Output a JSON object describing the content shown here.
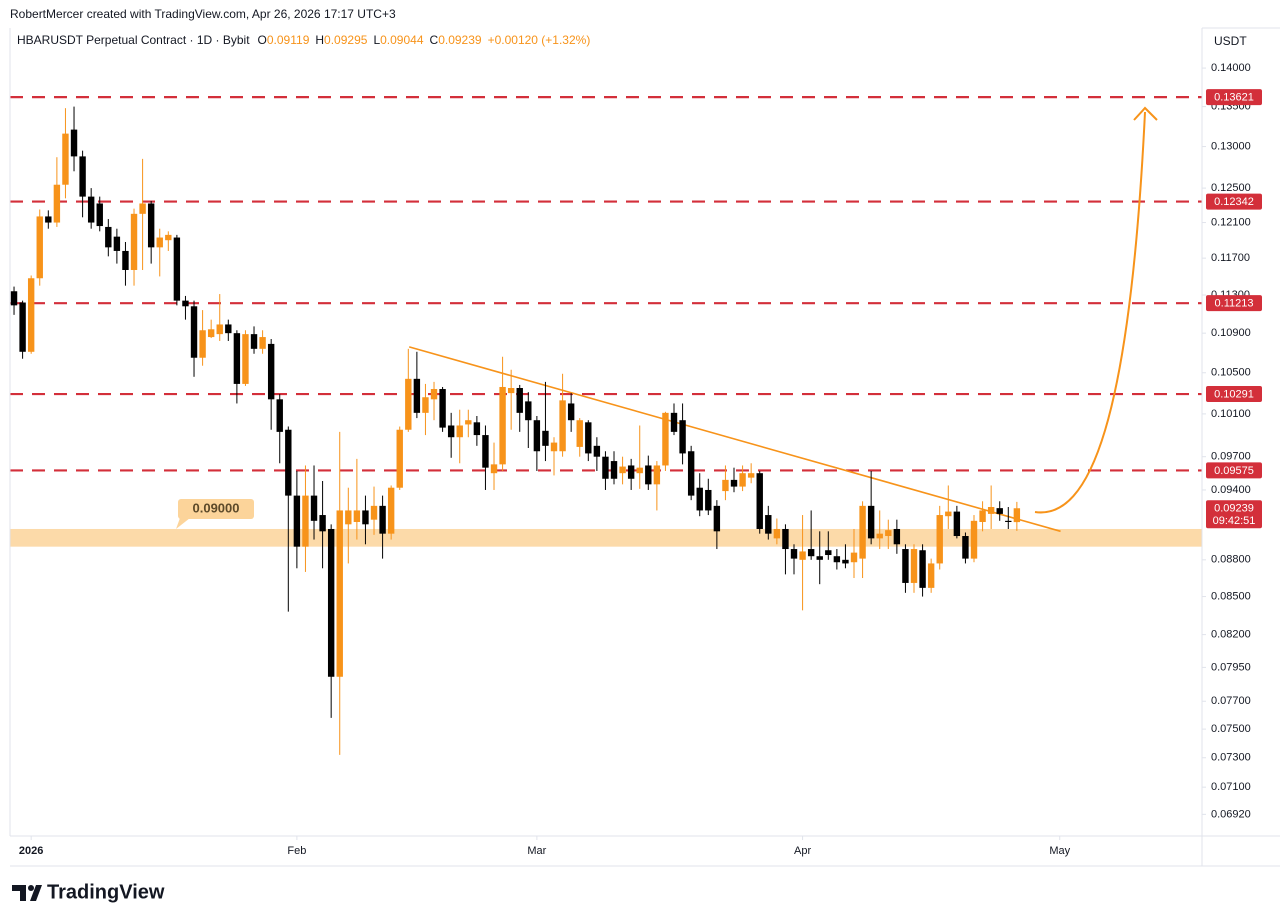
{
  "chart_data": {
    "type": "candlestick",
    "credit": "RobertMercer created with TradingView.com, Apr 26, 2026 17:17 UTC+3",
    "title": "HBARUSDT Perpetual Contract · 1D · Bybit",
    "ohlc_labels": [
      "O",
      "H",
      "L",
      "C"
    ],
    "change": "+0.00120 (+1.32%)",
    "axis_unit": "USDT",
    "countdown": "09:42:51",
    "footer": "TradingView",
    "up_color": "#f7931a",
    "down_color": "#000000",
    "level_color": "#d32f3a",
    "zone_color": "#fcd49a",
    "trend_color": "#f7931a",
    "log_scale": true,
    "grid": false,
    "xlim": [
      -0.47,
      138.6
    ],
    "xticks": [
      {
        "value": 2,
        "label": "2026"
      },
      {
        "value": 33,
        "label": "Feb"
      },
      {
        "value": 61,
        "label": "Mar"
      },
      {
        "value": 92,
        "label": "Apr"
      },
      {
        "value": 122,
        "label": "May"
      }
    ],
    "ylim": [
      0.0678,
      0.1454
    ],
    "yticks": [
      {
        "value": 0.14,
        "label": "0.14000"
      },
      {
        "value": 0.135,
        "label": "0.13500"
      },
      {
        "value": 0.13,
        "label": "0.13000"
      },
      {
        "value": 0.125,
        "label": "0.12500"
      },
      {
        "value": 0.121,
        "label": "0.12100"
      },
      {
        "value": 0.117,
        "label": "0.11700"
      },
      {
        "value": 0.113,
        "label": "0.11300"
      },
      {
        "value": 0.109,
        "label": "0.10900"
      },
      {
        "value": 0.105,
        "label": "0.10500"
      },
      {
        "value": 0.101,
        "label": "0.10100"
      },
      {
        "value": 0.097,
        "label": "0.09700"
      },
      {
        "value": 0.094,
        "label": "0.09400"
      },
      {
        "value": 0.088,
        "label": "0.08800"
      },
      {
        "value": 0.085,
        "label": "0.08500"
      },
      {
        "value": 0.082,
        "label": "0.08200"
      },
      {
        "value": 0.0795,
        "label": "0.07950"
      },
      {
        "value": 0.077,
        "label": "0.07700"
      },
      {
        "value": 0.075,
        "label": "0.07500"
      },
      {
        "value": 0.073,
        "label": "0.07300"
      },
      {
        "value": 0.071,
        "label": "0.07100"
      },
      {
        "value": 0.0692,
        "label": "0.06920"
      }
    ],
    "levels": [
      0.13621,
      0.12342,
      0.11213,
      0.10291,
      0.09575
    ],
    "zone": {
      "low": 0.0891,
      "high": 0.0906,
      "label": {
        "value": 0.09,
        "label": "0.09000"
      }
    },
    "trendline": {
      "x": [
        46.1,
        122.1
      ],
      "y": [
        0.1076,
        0.0904
      ]
    },
    "open": [
      0.1134,
      0.1122,
      0.1071,
      0.1148,
      0.1217,
      0.121,
      0.1254,
      0.1321,
      0.1288,
      0.124,
      0.1232,
      0.1205,
      0.1194,
      0.1178,
      0.1157,
      0.122,
      0.1232,
      0.1182,
      0.119,
      0.1193,
      0.1124,
      0.1118,
      0.1065,
      0.1086,
      0.1089,
      0.1099,
      0.109,
      0.1039,
      0.1089,
      0.1074,
      0.1079,
      0.1024,
      0.0995,
      0.0935,
      0.0891,
      0.0935,
      0.0918,
      0.0906,
      0.0788,
      0.091,
      0.0912,
      0.0922,
      0.0914,
      0.0926,
      0.0902,
      0.0942,
      0.0995,
      0.1044,
      0.1011,
      0.1024,
      0.1034,
      0.0999,
      0.0988,
      0.1,
      0.1002,
      0.099,
      0.0955,
      0.0963,
      0.103,
      0.1035,
      0.1022,
      0.1004,
      0.0994,
      0.0975,
      0.0975,
      0.102,
      0.0979,
      0.1002,
      0.098,
      0.097,
      0.0966,
      0.0955,
      0.0962,
      0.0955,
      0.0962,
      0.0945,
      0.0962,
      0.1011,
      0.1004,
      0.0975,
      0.0942,
      0.094,
      0.0926,
      0.0939,
      0.0949,
      0.0943,
      0.0951,
      0.0955,
      0.0918,
      0.0898,
      0.0906,
      0.0889,
      0.088,
      0.0889,
      0.0883,
      0.0888,
      0.0883,
      0.088,
      0.0878,
      0.0881,
      0.0926,
      0.0898,
      0.09,
      0.0906,
      0.0889,
      0.0861,
      0.0888,
      0.0857,
      0.0877,
      0.0917,
      0.0921,
      0.09,
      0.0881,
      0.0912,
      0.0919,
      0.0924,
      0.0913,
      0.09119
    ],
    "high": [
      0.1139,
      0.1124,
      0.1151,
      0.1225,
      0.1224,
      0.1287,
      0.1348,
      0.135,
      0.1295,
      0.125,
      0.124,
      0.1214,
      0.1203,
      0.1188,
      0.1226,
      0.1285,
      0.1235,
      0.1203,
      0.12,
      0.1196,
      0.1129,
      0.1124,
      0.1114,
      0.1104,
      0.1131,
      0.1104,
      0.1093,
      0.1093,
      0.1097,
      0.1093,
      0.1084,
      0.1029,
      0.0998,
      0.0957,
      0.0962,
      0.0962,
      0.0948,
      0.091,
      0.0993,
      0.0942,
      0.0968,
      0.0935,
      0.0943,
      0.0935,
      0.0944,
      0.0998,
      0.1074,
      0.1071,
      0.1039,
      0.1041,
      0.1036,
      0.1011,
      0.1014,
      0.1014,
      0.1008,
      0.0999,
      0.0983,
      0.1066,
      0.1053,
      0.1038,
      0.1031,
      0.1008,
      0.1041,
      0.0988,
      0.1049,
      0.103,
      0.1006,
      0.1004,
      0.0988,
      0.0975,
      0.0975,
      0.097,
      0.0968,
      0.0999,
      0.0971,
      0.0966,
      0.1012,
      0.102,
      0.102,
      0.098,
      0.0955,
      0.095,
      0.0931,
      0.0962,
      0.096,
      0.0962,
      0.0964,
      0.0957,
      0.0926,
      0.0915,
      0.091,
      0.0893,
      0.0918,
      0.0922,
      0.0904,
      0.0904,
      0.0889,
      0.0893,
      0.0906,
      0.093,
      0.0957,
      0.0922,
      0.0914,
      0.0914,
      0.0893,
      0.0893,
      0.0893,
      0.0881,
      0.0926,
      0.0944,
      0.0926,
      0.0903,
      0.0918,
      0.093,
      0.0944,
      0.093,
      0.0925,
      0.09295
    ],
    "low": [
      0.1109,
      0.1064,
      0.1069,
      0.114,
      0.1203,
      0.1205,
      0.1238,
      0.127,
      0.1216,
      0.1203,
      0.12,
      0.1172,
      0.1164,
      0.114,
      0.114,
      0.1157,
      0.1164,
      0.115,
      0.1178,
      0.1119,
      0.1104,
      0.1046,
      0.1057,
      0.1085,
      0.1082,
      0.1082,
      0.102,
      0.1037,
      0.1069,
      0.1069,
      0.0995,
      0.0964,
      0.0838,
      0.0873,
      0.087,
      0.0897,
      0.0873,
      0.0758,
      0.0732,
      0.0877,
      0.0897,
      0.0893,
      0.0901,
      0.0881,
      0.0897,
      0.094,
      0.0993,
      0.1006,
      0.099,
      0.1004,
      0.0993,
      0.0969,
      0.0964,
      0.0988,
      0.098,
      0.094,
      0.094,
      0.0957,
      0.0995,
      0.0993,
      0.0978,
      0.0957,
      0.0966,
      0.0953,
      0.097,
      0.0993,
      0.097,
      0.0966,
      0.0957,
      0.094,
      0.0945,
      0.0945,
      0.094,
      0.0941,
      0.094,
      0.0922,
      0.0957,
      0.099,
      0.0963,
      0.0931,
      0.0917,
      0.0918,
      0.0889,
      0.0931,
      0.0938,
      0.0939,
      0.0946,
      0.0902,
      0.0897,
      0.0893,
      0.0868,
      0.0868,
      0.0839,
      0.088,
      0.086,
      0.088,
      0.0872,
      0.0873,
      0.0865,
      0.0865,
      0.0893,
      0.0889,
      0.0889,
      0.0885,
      0.0853,
      0.0853,
      0.085,
      0.0853,
      0.0872,
      0.0906,
      0.0898,
      0.0877,
      0.0878,
      0.0904,
      0.0906,
      0.0913,
      0.0906,
      0.09044
    ],
    "close": [
      0.1119,
      0.1071,
      0.1148,
      0.1217,
      0.121,
      0.1254,
      0.1316,
      0.1288,
      0.124,
      0.121,
      0.1206,
      0.1182,
      0.1178,
      0.1157,
      0.122,
      0.1232,
      0.1182,
      0.1193,
      0.1196,
      0.1124,
      0.1118,
      0.1065,
      0.1093,
      0.1094,
      0.1099,
      0.109,
      0.1039,
      0.1089,
      0.1074,
      0.1086,
      0.1024,
      0.0993,
      0.0935,
      0.0891,
      0.0935,
      0.0913,
      0.0904,
      0.0788,
      0.0922,
      0.0922,
      0.0922,
      0.091,
      0.0926,
      0.0902,
      0.0942,
      0.0995,
      0.1044,
      0.1011,
      0.1026,
      0.1034,
      0.0997,
      0.0988,
      0.0999,
      0.1004,
      0.099,
      0.096,
      0.0963,
      0.1036,
      0.1035,
      0.1011,
      0.1004,
      0.0975,
      0.098,
      0.0983,
      0.1023,
      0.1004,
      0.1004,
      0.0973,
      0.097,
      0.095,
      0.095,
      0.0961,
      0.095,
      0.096,
      0.0945,
      0.0962,
      0.1011,
      0.0993,
      0.0973,
      0.0935,
      0.0922,
      0.0922,
      0.0904,
      0.0949,
      0.0943,
      0.0955,
      0.0955,
      0.0906,
      0.0902,
      0.0906,
      0.0889,
      0.0881,
      0.0887,
      0.0883,
      0.088,
      0.0884,
      0.0878,
      0.0877,
      0.0886,
      0.0926,
      0.0898,
      0.0902,
      0.0905,
      0.0893,
      0.0861,
      0.0889,
      0.0857,
      0.0877,
      0.0918,
      0.0921,
      0.09,
      0.0881,
      0.0913,
      0.0922,
      0.0925,
      0.0919,
      0.0912,
      0.09239
    ]
  }
}
